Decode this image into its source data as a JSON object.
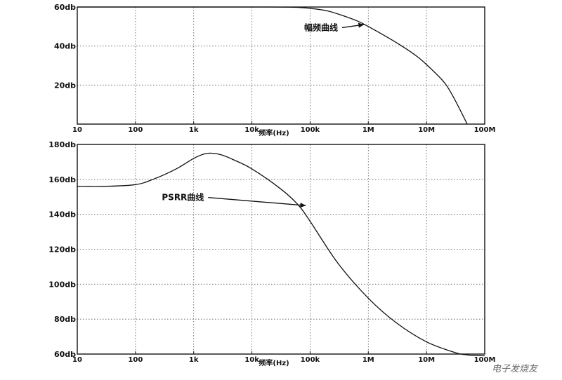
{
  "chart_data": [
    {
      "type": "line",
      "xscale": "log",
      "xlim": [
        10,
        100000000
      ],
      "ylim": [
        0,
        60
      ],
      "grid": true,
      "xlabel": "频率(Hz)",
      "ylabel": "",
      "x_ticks": [
        {
          "value": 10,
          "label": "10"
        },
        {
          "value": 100,
          "label": "100"
        },
        {
          "value": 1000,
          "label": "1k"
        },
        {
          "value": 10000,
          "label": "10k"
        },
        {
          "value": 100000,
          "label": "100k"
        },
        {
          "value": 1000000,
          "label": "1M"
        },
        {
          "value": 10000000,
          "label": "10M"
        },
        {
          "value": 100000000,
          "label": "100M"
        }
      ],
      "y_ticks": [
        {
          "value": 20,
          "label": "20db"
        },
        {
          "value": 40,
          "label": "40db"
        },
        {
          "value": 60,
          "label": "60db"
        }
      ],
      "series": [
        {
          "name": "幅频曲线",
          "x": [
            10,
            100,
            1000,
            10000,
            50000,
            100000,
            200000,
            400000,
            700000,
            1000000,
            2000000,
            4000000,
            7000000,
            10000000,
            20000000,
            30000000,
            50000000
          ],
          "y": [
            60,
            60,
            60,
            60,
            59.9,
            59.3,
            58,
            55.2,
            52.4,
            50,
            45,
            39.5,
            34.5,
            30.5,
            21.5,
            13,
            0
          ]
        }
      ],
      "annotations": [
        {
          "text": "幅频曲线",
          "x": 300000,
          "y": 48,
          "arrow_to_x": 1000000,
          "arrow_to_y": 51
        }
      ]
    },
    {
      "type": "line",
      "xscale": "log",
      "xlim": [
        10,
        100000000
      ],
      "ylim": [
        60,
        180
      ],
      "grid": true,
      "xlabel": "频率(Hz)",
      "ylabel": "",
      "x_ticks": [
        {
          "value": 10,
          "label": "10"
        },
        {
          "value": 100,
          "label": "100"
        },
        {
          "value": 1000,
          "label": "1k"
        },
        {
          "value": 10000,
          "label": "10k"
        },
        {
          "value": 100000,
          "label": "100k"
        },
        {
          "value": 1000000,
          "label": "1M"
        },
        {
          "value": 10000000,
          "label": "10M"
        },
        {
          "value": 100000000,
          "label": "100M"
        }
      ],
      "y_ticks": [
        {
          "value": 60,
          "label": "60db"
        },
        {
          "value": 80,
          "label": "80db"
        },
        {
          "value": 100,
          "label": "100db"
        },
        {
          "value": 120,
          "label": "120db"
        },
        {
          "value": 140,
          "label": "140db"
        },
        {
          "value": 160,
          "label": "160db"
        },
        {
          "value": 180,
          "label": "180db"
        }
      ],
      "series": [
        {
          "name": "PSRR曲线",
          "x": [
            10,
            30,
            100,
            200,
            500,
            1000,
            1500,
            2000,
            3000,
            5000,
            10000,
            30000,
            60000,
            100000,
            300000,
            1000000,
            3000000,
            10000000,
            30000000,
            50000000,
            100000000
          ],
          "y": [
            156,
            156,
            157,
            160,
            166,
            172,
            174.5,
            175,
            174,
            171,
            166,
            155,
            146,
            136,
            112,
            92,
            78,
            67,
            61,
            59.5,
            59
          ]
        }
      ],
      "annotations": [
        {
          "text": "PSRR曲线",
          "x": 1500,
          "y": 148,
          "arrow_to_x": 100000,
          "arrow_to_y": 145
        }
      ]
    }
  ],
  "watermark": "电子发烧友"
}
